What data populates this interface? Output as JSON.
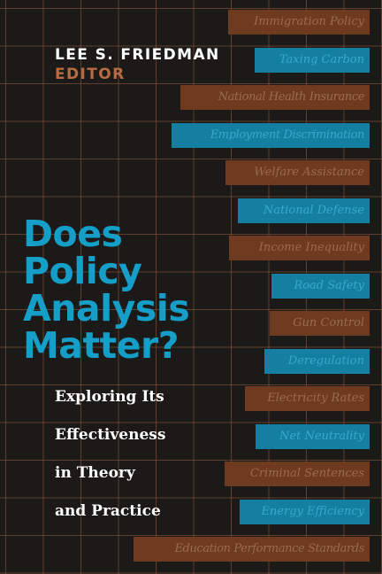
{
  "cover": {
    "editor_name": "LEE S. FRIEDMAN",
    "editor_role": "EDITOR",
    "title_lines": [
      "Does",
      "Policy",
      "Analysis",
      "Matter?"
    ],
    "subtitle_lines": [
      "Exploring Its",
      "Effectiveness",
      "in Theory",
      "and Practice"
    ],
    "policy_bars": [
      {
        "label": "Immigration Policy",
        "color": "orange"
      },
      {
        "label": "Taxing Carbon",
        "color": "blue"
      },
      {
        "label": "National Health Insurance",
        "color": "orange"
      },
      {
        "label": "Employment Discrimination",
        "color": "blue"
      },
      {
        "label": "Welfare Assistance",
        "color": "orange"
      },
      {
        "label": "National Defense",
        "color": "blue"
      },
      {
        "label": "Income Inequality",
        "color": "orange"
      },
      {
        "label": "Road Safety",
        "color": "blue"
      },
      {
        "label": "Gun Control",
        "color": "orange"
      },
      {
        "label": "Deregulation",
        "color": "blue"
      },
      {
        "label": "Electricity Rates",
        "color": "orange"
      },
      {
        "label": "Net Neutrality",
        "color": "blue"
      },
      {
        "label": "Criminal Sentences",
        "color": "orange"
      },
      {
        "label": "Energy Efficiency",
        "color": "blue"
      },
      {
        "label": "Education Performance Standards",
        "color": "orange"
      }
    ],
    "colors": {
      "background": "#1c1a18",
      "title_blue": "#159fc8",
      "editor_orange": "#b86a42",
      "bar_orange": "#6e3a20",
      "bar_blue": "#157fa2"
    }
  }
}
